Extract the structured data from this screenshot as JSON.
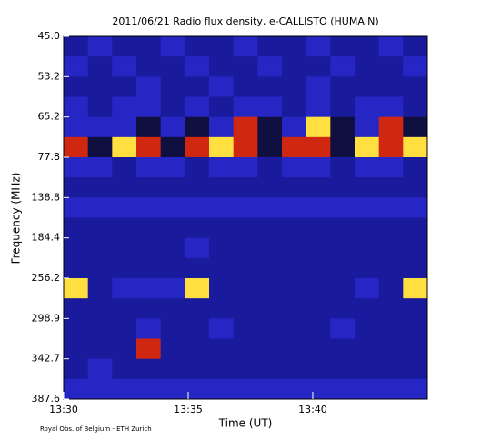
{
  "chart_data": {
    "type": "heatmap",
    "title": "2011/06/21  Radio flux density, e-CALLISTO (HUMAIN)",
    "x_label": "Time (UT)",
    "y_label": "Frequency (MHz)",
    "footer": "Royal Obs. of Belgium - ETH Zurich",
    "xlim": [
      0,
      14.6
    ],
    "xticks": [
      {
        "value": 0,
        "label": "13:30"
      },
      {
        "value": 5,
        "label": "13:35"
      },
      {
        "value": 10,
        "label": "13:40"
      }
    ],
    "yticks": [
      {
        "value": 45,
        "label": "45.0"
      },
      53.2,
      65.2,
      77.8,
      138.8,
      184.4,
      256.2,
      298.9,
      342.7,
      387.6
    ],
    "colorscale": [
      "#1a1a9c",
      "#2626c4",
      "#101040",
      "#d02810",
      "#ffe040"
    ],
    "z": [
      [
        0,
        1,
        0,
        0,
        1,
        0,
        0,
        1,
        0,
        0,
        1,
        0,
        0,
        1,
        0
      ],
      [
        1,
        0,
        1,
        0,
        0,
        1,
        0,
        0,
        1,
        0,
        0,
        1,
        0,
        0,
        1
      ],
      [
        0,
        0,
        0,
        1,
        0,
        0,
        1,
        0,
        0,
        0,
        1,
        0,
        0,
        0,
        0
      ],
      [
        1,
        0,
        1,
        1,
        0,
        1,
        0,
        1,
        1,
        0,
        1,
        0,
        1,
        1,
        0
      ],
      [
        1,
        1,
        1,
        2,
        1,
        2,
        1,
        3,
        2,
        1,
        4,
        2,
        1,
        3,
        2
      ],
      [
        3,
        2,
        4,
        3,
        2,
        3,
        4,
        3,
        2,
        3,
        3,
        2,
        4,
        3,
        4
      ],
      [
        1,
        1,
        0,
        1,
        1,
        0,
        1,
        1,
        0,
        1,
        1,
        0,
        1,
        1,
        0
      ],
      [
        0,
        0,
        0,
        0,
        0,
        0,
        0,
        0,
        0,
        0,
        0,
        0,
        0,
        0,
        0
      ],
      [
        1,
        1,
        1,
        1,
        1,
        1,
        1,
        1,
        1,
        1,
        1,
        1,
        1,
        1,
        1
      ],
      [
        0,
        0,
        0,
        0,
        0,
        0,
        0,
        0,
        0,
        0,
        0,
        0,
        0,
        0,
        0
      ],
      [
        0,
        0,
        0,
        0,
        0,
        1,
        0,
        0,
        0,
        0,
        0,
        0,
        0,
        0,
        0
      ],
      [
        0,
        0,
        0,
        0,
        0,
        0,
        0,
        0,
        0,
        0,
        0,
        0,
        0,
        0,
        0
      ],
      [
        4,
        0,
        1,
        1,
        1,
        4,
        0,
        0,
        0,
        0,
        0,
        0,
        1,
        0,
        4
      ],
      [
        0,
        0,
        0,
        0,
        0,
        0,
        0,
        0,
        0,
        0,
        0,
        0,
        0,
        0,
        0
      ],
      [
        0,
        0,
        0,
        1,
        0,
        0,
        1,
        0,
        0,
        0,
        0,
        1,
        0,
        0,
        0
      ],
      [
        0,
        0,
        0,
        3,
        0,
        0,
        0,
        0,
        0,
        0,
        0,
        0,
        0,
        0,
        0
      ],
      [
        0,
        1,
        0,
        0,
        0,
        0,
        0,
        0,
        0,
        0,
        0,
        0,
        0,
        0,
        0
      ],
      [
        1,
        1,
        1,
        1,
        1,
        1,
        1,
        1,
        1,
        1,
        1,
        1,
        1,
        1,
        1
      ]
    ]
  }
}
